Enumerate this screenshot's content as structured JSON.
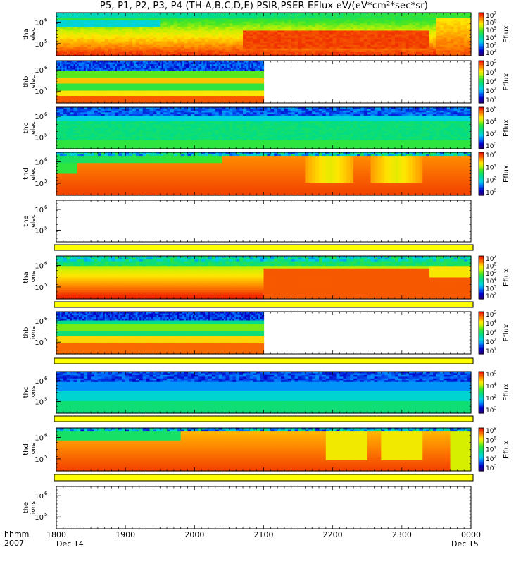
{
  "title": "P5, P1, P2, P3, P4 (TH-A,B,C,D,E) PSIR,PSER EFlux eV/(eV*cm²*sec*sr)",
  "x_axis": {
    "label_top": "hhmm",
    "label_bottom": "2007",
    "ticks": [
      "1800",
      "1900",
      "2000",
      "2100",
      "2200",
      "2300",
      "0000"
    ],
    "date_start": "Dec 14",
    "date_end": "Dec 15"
  },
  "chart_data": [
    {
      "type": "heatmap",
      "panel": "tha_elec",
      "ylabel": [
        "tha",
        "elec"
      ],
      "y_ticks": [
        {
          "label": "10",
          "exp": "6",
          "value": 1000000
        },
        {
          "label": "10",
          "exp": "5",
          "value": 100000
        }
      ],
      "cbar_label": "Eflux",
      "cbar_ticks": [
        {
          "label": "10",
          "exp": "7"
        },
        {
          "label": "10",
          "exp": "6"
        },
        {
          "label": "10",
          "exp": "5"
        },
        {
          "label": "10",
          "exp": "4"
        },
        {
          "label": "10",
          "exp": "3"
        },
        {
          "label": "10",
          "exp": "2"
        }
      ],
      "data_coverage": [
        0,
        1
      ],
      "pattern": "tha_e"
    },
    {
      "type": "heatmap",
      "panel": "thb_elec",
      "ylabel": [
        "thb",
        "elec"
      ],
      "y_ticks": [
        {
          "label": "10",
          "exp": "6",
          "value": 1000000
        },
        {
          "label": "10",
          "exp": "5",
          "value": 100000
        }
      ],
      "cbar_label": "Eflux",
      "cbar_ticks": [
        {
          "label": "10",
          "exp": "5"
        },
        {
          "label": "10",
          "exp": "4"
        },
        {
          "label": "10",
          "exp": "3"
        },
        {
          "label": "10",
          "exp": "2"
        },
        {
          "label": "10",
          "exp": "1"
        }
      ],
      "data_coverage": [
        0,
        0.5
      ],
      "pattern": "thb_e"
    },
    {
      "type": "heatmap",
      "panel": "thc_elec",
      "ylabel": [
        "thc",
        "elec"
      ],
      "y_ticks": [
        {
          "label": "10",
          "exp": "6",
          "value": 1000000
        },
        {
          "label": "10",
          "exp": "5",
          "value": 100000
        }
      ],
      "cbar_label": "Eflux",
      "cbar_ticks": [
        {
          "label": "10",
          "exp": "6"
        },
        {
          "label": "10",
          "exp": "4"
        },
        {
          "label": "10",
          "exp": "2"
        },
        {
          "label": "10",
          "exp": "0"
        }
      ],
      "data_coverage": [
        0,
        1
      ],
      "pattern": "thc_e"
    },
    {
      "type": "heatmap",
      "panel": "thd_elec",
      "ylabel": [
        "thd",
        "elec"
      ],
      "y_ticks": [
        {
          "label": "10",
          "exp": "6",
          "value": 1000000
        },
        {
          "label": "10",
          "exp": "5",
          "value": 100000
        }
      ],
      "cbar_label": "Eflux",
      "cbar_ticks": [
        {
          "label": "10",
          "exp": "6"
        },
        {
          "label": "10",
          "exp": "4"
        },
        {
          "label": "10",
          "exp": "2"
        },
        {
          "label": "10",
          "exp": "0"
        }
      ],
      "data_coverage": [
        0,
        1
      ],
      "pattern": "thd_e"
    },
    {
      "type": "heatmap",
      "panel": "the_elec",
      "ylabel": [
        "the",
        "elec"
      ],
      "y_ticks": [
        {
          "label": "10",
          "exp": "6",
          "value": 1000000
        },
        {
          "label": "10",
          "exp": "5",
          "value": 100000
        }
      ],
      "data_coverage": [
        0,
        0
      ],
      "pattern": "none"
    },
    {
      "type": "heatmap",
      "panel": "tha_ions",
      "ylabel": [
        "tha",
        "ions"
      ],
      "y_ticks": [
        {
          "label": "10",
          "exp": "6",
          "value": 1000000
        },
        {
          "label": "10",
          "exp": "5",
          "value": 100000
        }
      ],
      "cbar_label": "Eflux",
      "cbar_ticks": [
        {
          "label": "10",
          "exp": "7"
        },
        {
          "label": "10",
          "exp": "6"
        },
        {
          "label": "10",
          "exp": "5"
        },
        {
          "label": "10",
          "exp": "4"
        },
        {
          "label": "10",
          "exp": "3"
        },
        {
          "label": "10",
          "exp": "2"
        }
      ],
      "data_coverage": [
        0,
        1
      ],
      "pattern": "tha_i"
    },
    {
      "type": "heatmap",
      "panel": "thb_ions",
      "ylabel": [
        "thb",
        "ions"
      ],
      "y_ticks": [
        {
          "label": "10",
          "exp": "6",
          "value": 1000000
        },
        {
          "label": "10",
          "exp": "5",
          "value": 100000
        }
      ],
      "cbar_label": "Eflux",
      "cbar_ticks": [
        {
          "label": "10",
          "exp": "5"
        },
        {
          "label": "10",
          "exp": "4"
        },
        {
          "label": "10",
          "exp": "3"
        },
        {
          "label": "10",
          "exp": "2"
        },
        {
          "label": "10",
          "exp": "1"
        }
      ],
      "data_coverage": [
        0,
        0.5
      ],
      "pattern": "thb_i"
    },
    {
      "type": "heatmap",
      "panel": "thc_ions",
      "ylabel": [
        "thc",
        "ions"
      ],
      "y_ticks": [
        {
          "label": "10",
          "exp": "6",
          "value": 1000000
        },
        {
          "label": "10",
          "exp": "5",
          "value": 100000
        }
      ],
      "cbar_label": "Eflux",
      "cbar_ticks": [
        {
          "label": "10",
          "exp": "6"
        },
        {
          "label": "10",
          "exp": "4"
        },
        {
          "label": "10",
          "exp": "2"
        },
        {
          "label": "10",
          "exp": "0"
        }
      ],
      "data_coverage": [
        0,
        1
      ],
      "pattern": "thc_i"
    },
    {
      "type": "heatmap",
      "panel": "thd_ions",
      "ylabel": [
        "thd",
        "ions"
      ],
      "y_ticks": [
        {
          "label": "10",
          "exp": "6",
          "value": 1000000
        },
        {
          "label": "10",
          "exp": "5",
          "value": 100000
        }
      ],
      "cbar_label": "Eflux",
      "cbar_ticks": [
        {
          "label": "10",
          "exp": "8"
        },
        {
          "label": "10",
          "exp": "6"
        },
        {
          "label": "10",
          "exp": "4"
        },
        {
          "label": "10",
          "exp": "2"
        },
        {
          "label": "10",
          "exp": "0"
        }
      ],
      "data_coverage": [
        0,
        1
      ],
      "pattern": "thd_i"
    },
    {
      "type": "heatmap",
      "panel": "the_ions",
      "ylabel": [
        "the",
        "ions"
      ],
      "y_ticks": [
        {
          "label": "10",
          "exp": "6",
          "value": 1000000
        },
        {
          "label": "10",
          "exp": "5",
          "value": 100000
        }
      ],
      "data_coverage": [
        0,
        0
      ],
      "pattern": "none"
    }
  ],
  "colors": {
    "flag_fill": "#ffff00",
    "frame": "#000000"
  }
}
